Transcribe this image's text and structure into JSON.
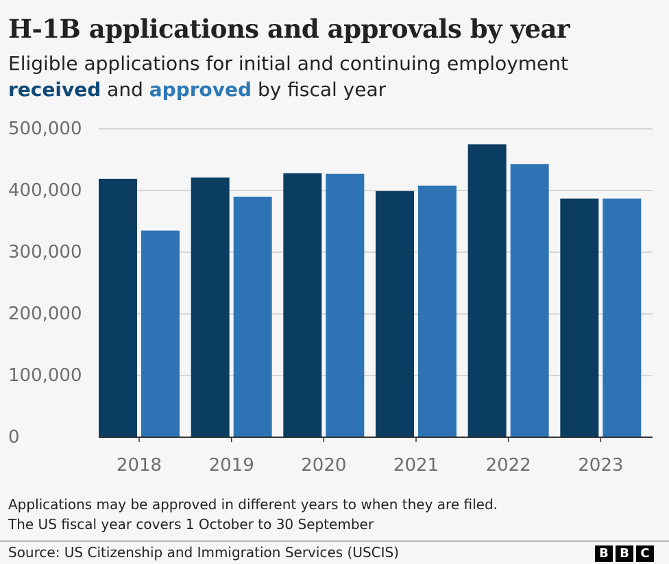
{
  "header": {
    "title": "H-1B applications and approvals by year",
    "subtitle_line1": "Eligible applications for initial and continuing employment",
    "subtitle_received": "received",
    "subtitle_and": " and ",
    "subtitle_approved": "approved",
    "subtitle_tail": " by fiscal year"
  },
  "notes": {
    "line1": "Applications may be approved in different years to when they are filed.",
    "line2": "The US fiscal year covers 1 October to 30 September"
  },
  "footer": {
    "source": "Source: US Citizenship and Immigration Services (USCIS)",
    "logo_letters": [
      "B",
      "B",
      "C"
    ]
  },
  "chart_data": {
    "type": "bar",
    "categories": [
      "2018",
      "2019",
      "2020",
      "2021",
      "2022",
      "2023"
    ],
    "series": [
      {
        "name": "received",
        "color": "#0b3d62",
        "values": [
          419000,
          421000,
          428000,
          399000,
          475000,
          387000
        ]
      },
      {
        "name": "approved",
        "color": "#2e74b5",
        "values": [
          335000,
          390000,
          427000,
          408000,
          443000,
          387000
        ]
      }
    ],
    "ylim": [
      0,
      500000
    ],
    "yticks": [
      0,
      100000,
      200000,
      300000,
      400000,
      500000
    ],
    "ytick_labels": [
      "0",
      "100,000",
      "200,000",
      "300,000",
      "400,000",
      "500,000"
    ],
    "grid": true
  }
}
